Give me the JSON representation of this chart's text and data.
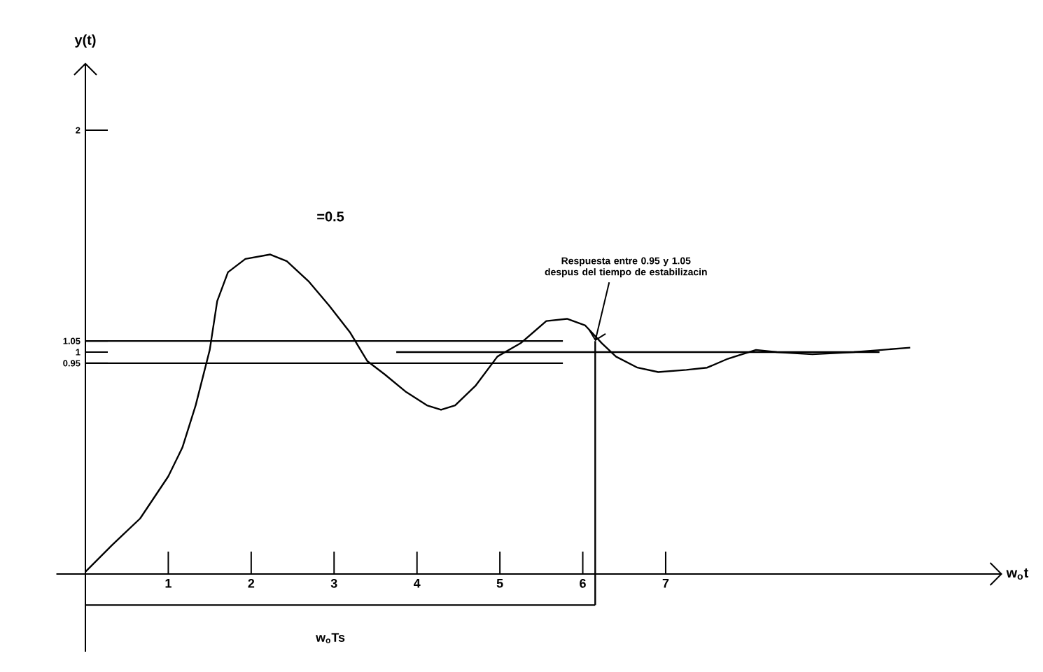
{
  "chart_data": {
    "type": "line",
    "xlabel": "w$_{o}$t",
    "ylabel": "y(t)",
    "xlim": [
      -0.35,
      11.05
    ],
    "ylim": [
      -0.35,
      2.3
    ],
    "xticks": [
      1,
      2,
      3,
      4,
      5,
      6,
      7
    ],
    "yticks": [
      0.95,
      1,
      1.05,
      2
    ],
    "grid": false,
    "series": [
      {
        "color": "#000000",
        "x": [
          0,
          0.32,
          0.66,
          1.0,
          1.17,
          1.33,
          1.5,
          1.59,
          1.72,
          1.93,
          2.23,
          2.43,
          2.69,
          2.94,
          3.19,
          3.4,
          3.61,
          3.87,
          4.12,
          4.29,
          4.46,
          4.71,
          4.97,
          5.25,
          5.56,
          5.81,
          6.03,
          6.23,
          6.4,
          6.66,
          6.91,
          7.25,
          7.5,
          7.75,
          8.09,
          8.34,
          8.77,
          9.27,
          9.61,
          9.95
        ],
        "values": [
          0.01,
          0.13,
          0.25,
          0.44,
          0.57,
          0.76,
          1.01,
          1.23,
          1.36,
          1.42,
          1.44,
          1.41,
          1.32,
          1.21,
          1.09,
          0.96,
          0.9,
          0.82,
          0.76,
          0.74,
          0.76,
          0.85,
          0.98,
          1.04,
          1.14,
          1.15,
          1.12,
          1.04,
          0.98,
          0.93,
          0.91,
          0.92,
          0.93,
          0.97,
          1.01,
          1.0,
          0.99,
          1.0,
          1.01,
          1.02
        ]
      },
      {
        "color": "#000000",
        "x": [
          0,
          5.76
        ],
        "values": [
          1.05,
          1.05
        ]
      },
      {
        "color": "#000000",
        "x": [
          3.75,
          9.58
        ],
        "values": [
          1,
          1
        ]
      },
      {
        "color": "#000000",
        "x": [
          0,
          5.76
        ],
        "values": [
          0.95,
          0.95
        ]
      },
      {
        "color": "#000000",
        "x": [
          6.15,
          6.15
        ],
        "values": [
          -0.14,
          1.05
        ]
      },
      {
        "color": "#000000",
        "x": [
          0,
          6.15
        ],
        "values": [
          -0.14,
          -0.14
        ]
      }
    ],
    "annotations": [
      "=0.5",
      {
        "text": "Respuesta entre 0.95 y 1.05 despus del tiempo de estabilizacin",
        "x": 6.15,
        "y": 1.05
      },
      "w$_{o}$Ts"
    ]
  }
}
